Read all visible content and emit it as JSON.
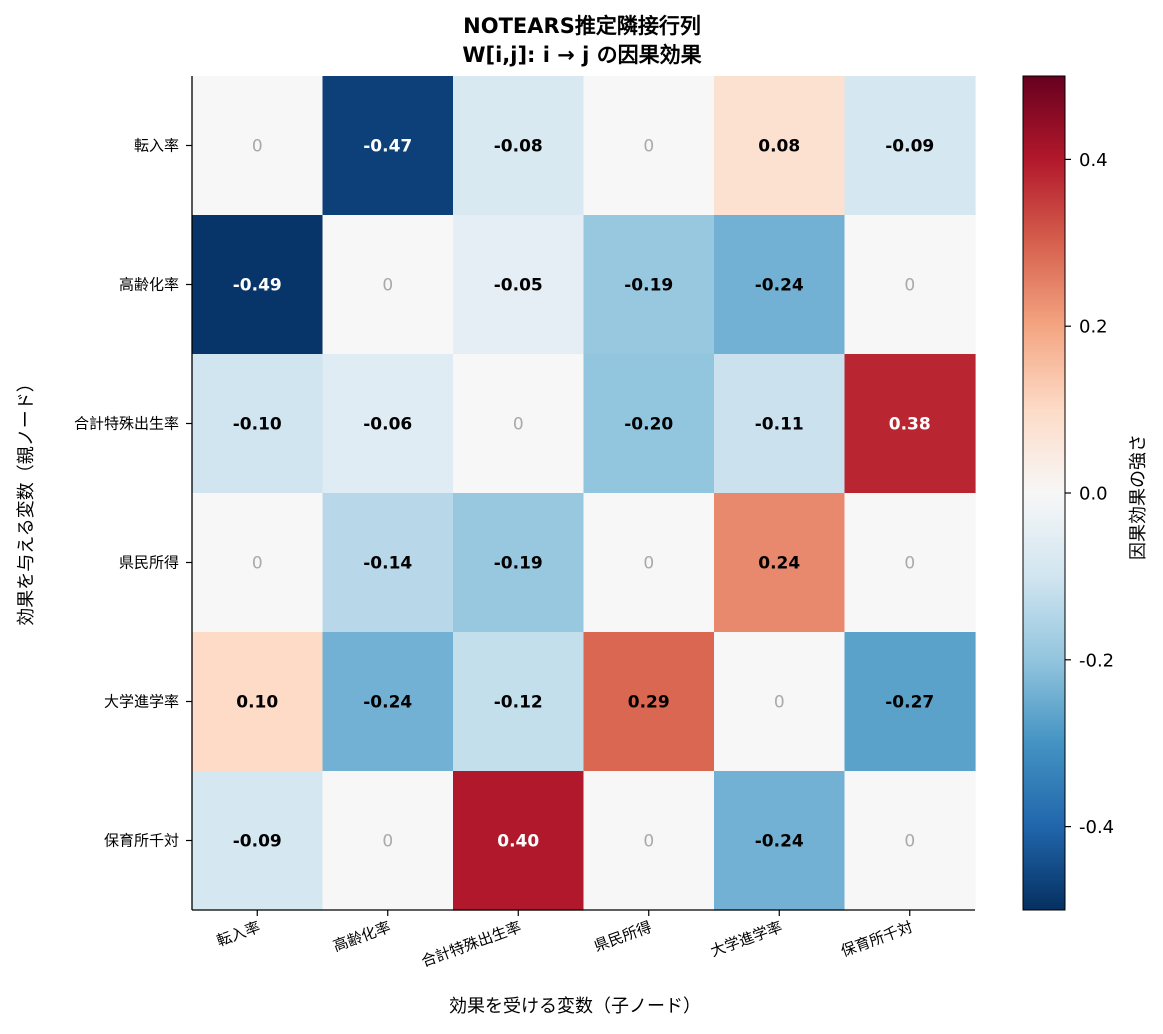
{
  "chart_data": {
    "type": "heatmap",
    "title_line1": "NOTEARS推定隣接行列",
    "title_line2": "W[i,j]: i → j の因果効果",
    "xlabel": "効果を受ける変数（子ノード）",
    "ylabel": "効果を与える変数（親ノード）",
    "x_categories": [
      "転入率",
      "高齢化率",
      "合計特殊出生率",
      "県民所得",
      "大学進学率",
      "保育所千対"
    ],
    "y_categories": [
      "転入率",
      "高齢化率",
      "合計特殊出生率",
      "県民所得",
      "大学進学率",
      "保育所千対"
    ],
    "values": [
      [
        0,
        -0.47,
        -0.08,
        0,
        0.08,
        -0.09
      ],
      [
        -0.49,
        0,
        -0.05,
        -0.19,
        -0.24,
        0
      ],
      [
        -0.1,
        -0.06,
        0,
        -0.2,
        -0.11,
        0.38
      ],
      [
        0,
        -0.14,
        -0.19,
        0,
        0.24,
        0
      ],
      [
        0.1,
        -0.24,
        -0.12,
        0.29,
        0,
        -0.27
      ],
      [
        -0.09,
        0,
        0.4,
        0,
        -0.24,
        0
      ]
    ],
    "value_labels": [
      [
        "0",
        "-0.47",
        "-0.08",
        "0",
        "0.08",
        "-0.09"
      ],
      [
        "-0.49",
        "0",
        "-0.05",
        "-0.19",
        "-0.24",
        "0"
      ],
      [
        "-0.10",
        "-0.06",
        "0",
        "-0.20",
        "-0.11",
        "0.38"
      ],
      [
        "0",
        "-0.14",
        "-0.19",
        "0",
        "0.24",
        "0"
      ],
      [
        "0.10",
        "-0.24",
        "-0.12",
        "0.29",
        "0",
        "-0.27"
      ],
      [
        "-0.09",
        "0",
        "0.40",
        "0",
        "-0.24",
        "0"
      ]
    ],
    "colormap": "RdBu_r",
    "vmin": -0.5,
    "vmax": 0.5,
    "colorbar_label": "因果効果の強さ",
    "colorbar_ticks": [
      0.4,
      0.2,
      0.0,
      -0.2,
      -0.4
    ],
    "colorbar_tick_labels": [
      "0.4",
      "0.2",
      "0.0",
      "-0.2",
      "-0.4"
    ]
  }
}
